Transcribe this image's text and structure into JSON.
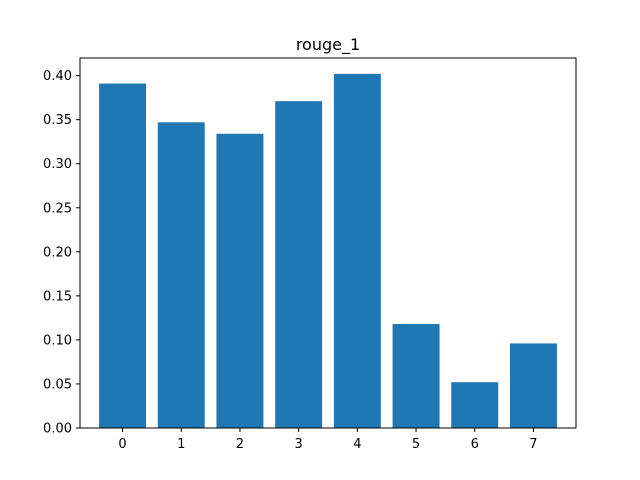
{
  "chart_data": {
    "type": "bar",
    "title": "rouge_1",
    "xlabel": "",
    "ylabel": "",
    "categories": [
      "0",
      "1",
      "2",
      "3",
      "4",
      "5",
      "6",
      "7"
    ],
    "values": [
      0.391,
      0.347,
      0.334,
      0.371,
      0.402,
      0.118,
      0.052,
      0.096
    ],
    "ylim": [
      0,
      0.42
    ],
    "yticks": [
      "0.00",
      "0.05",
      "0.10",
      "0.15",
      "0.20",
      "0.25",
      "0.30",
      "0.35",
      "0.40"
    ],
    "grid": false,
    "colors": {
      "bar": "#1f77b4",
      "axis": "#000000",
      "background": "#ffffff"
    }
  }
}
